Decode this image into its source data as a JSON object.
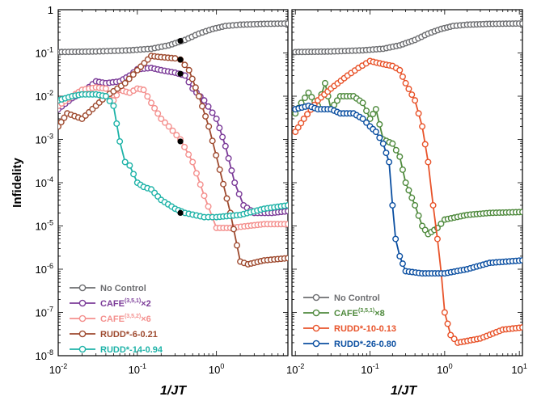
{
  "chart_data": [
    {
      "type": "line",
      "panel": "left",
      "title": "",
      "xlabel": "1/JT",
      "ylabel": "Infidelity",
      "x_scale": "log",
      "y_scale": "log",
      "xlim": [
        0.01,
        8
      ],
      "ylim": [
        1e-08,
        1
      ],
      "x_ticks": [
        {
          "value": 0.01,
          "base": "10",
          "exp": "-2"
        },
        {
          "value": 0.1,
          "base": "10",
          "exp": "-1"
        },
        {
          "value": 1,
          "base": "10",
          "exp": "0"
        }
      ],
      "y_ticks": [
        {
          "value": 1,
          "base": "1",
          "exp": ""
        },
        {
          "value": 0.1,
          "base": "10",
          "exp": "-1"
        },
        {
          "value": 0.01,
          "base": "10",
          "exp": "-2"
        },
        {
          "value": 0.001,
          "base": "10",
          "exp": "-3"
        },
        {
          "value": 0.0001,
          "base": "10",
          "exp": "-4"
        },
        {
          "value": 1e-05,
          "base": "10",
          "exp": "-5"
        },
        {
          "value": 1e-06,
          "base": "10",
          "exp": "-6"
        },
        {
          "value": 1e-07,
          "base": "10",
          "exp": "-7"
        },
        {
          "value": 1e-08,
          "base": "10",
          "exp": "-8"
        }
      ],
      "legend_position": "bottom-left",
      "series": [
        {
          "name": "No Control",
          "label": {
            "main": "No Control",
            "sup": "",
            "suffix": ""
          },
          "color": "#6d6e71",
          "points": [
            [
              0.01,
              0.105
            ],
            [
              0.03,
              0.108
            ],
            [
              0.08,
              0.115
            ],
            [
              0.15,
              0.125
            ],
            [
              0.25,
              0.15
            ],
            [
              0.4,
              0.2
            ],
            [
              0.6,
              0.28
            ],
            [
              0.9,
              0.36
            ],
            [
              1.3,
              0.42
            ],
            [
              2,
              0.45
            ],
            [
              4,
              0.47
            ],
            [
              8,
              0.48
            ]
          ]
        },
        {
          "name": "CAFE(3,5,1)x2",
          "label": {
            "main": "CAFE",
            "sup": "(3,5,1)",
            "suffix": "×2"
          },
          "color": "#7b3b98",
          "points": [
            [
              0.01,
              0.005
            ],
            [
              0.015,
              0.009
            ],
            [
              0.02,
              0.012
            ],
            [
              0.03,
              0.022
            ],
            [
              0.04,
              0.02
            ],
            [
              0.06,
              0.022
            ],
            [
              0.08,
              0.03
            ],
            [
              0.1,
              0.042
            ],
            [
              0.15,
              0.045
            ],
            [
              0.2,
              0.04
            ],
            [
              0.3,
              0.035
            ],
            [
              0.4,
              0.03
            ],
            [
              0.5,
              0.015
            ],
            [
              0.7,
              0.008
            ],
            [
              1,
              0.003
            ],
            [
              1.3,
              0.0007
            ],
            [
              1.7,
              0.0001
            ],
            [
              2.2,
              3e-05
            ],
            [
              3,
              2e-05
            ],
            [
              5,
              2e-05
            ],
            [
              8,
              2.2e-05
            ]
          ]
        },
        {
          "name": "CAFE(3,5,2)x6",
          "label": {
            "main": "CAFE",
            "sup": "(3,5,2)",
            "suffix": "×6"
          },
          "color": "#f4908e",
          "points": [
            [
              0.01,
              0.006
            ],
            [
              0.015,
              0.01
            ],
            [
              0.02,
              0.014
            ],
            [
              0.03,
              0.016
            ],
            [
              0.04,
              0.015
            ],
            [
              0.05,
              0.008
            ],
            [
              0.06,
              0.014
            ],
            [
              0.08,
              0.012
            ],
            [
              0.1,
              0.015
            ],
            [
              0.12,
              0.014
            ],
            [
              0.15,
              0.007
            ],
            [
              0.2,
              0.003
            ],
            [
              0.25,
              0.002
            ],
            [
              0.35,
              0.001
            ],
            [
              0.5,
              0.0003
            ],
            [
              0.7,
              5e-05
            ],
            [
              1,
              9e-06
            ],
            [
              1.5,
              9e-06
            ],
            [
              2.5,
              1e-05
            ],
            [
              4,
              1.1e-05
            ],
            [
              8,
              1.1e-05
            ]
          ]
        },
        {
          "name": "RUDD*-6-0.21",
          "label": {
            "main": "RUDD*-6-0.21",
            "sup": "",
            "suffix": ""
          },
          "color": "#9e4a2f",
          "points": [
            [
              0.01,
              0.002
            ],
            [
              0.013,
              0.004
            ],
            [
              0.02,
              0.003
            ],
            [
              0.03,
              0.006
            ],
            [
              0.04,
              0.01
            ],
            [
              0.05,
              0.013
            ],
            [
              0.07,
              0.02
            ],
            [
              0.1,
              0.04
            ],
            [
              0.15,
              0.085
            ],
            [
              0.2,
              0.08
            ],
            [
              0.3,
              0.075
            ],
            [
              0.35,
              0.07
            ],
            [
              0.45,
              0.04
            ],
            [
              0.6,
              0.01
            ],
            [
              0.8,
              0.002
            ],
            [
              1.1,
              0.0002
            ],
            [
              1.5,
              2e-05
            ],
            [
              2,
              1.5e-06
            ],
            [
              2.5,
              1.3e-06
            ],
            [
              4,
              1.6e-06
            ],
            [
              8,
              1.8e-06
            ]
          ]
        },
        {
          "name": "RUDD*-14-0.94",
          "label": {
            "main": "RUDD*-14-0.94",
            "sup": "",
            "suffix": ""
          },
          "color": "#1fb3a8",
          "points": [
            [
              0.01,
              0.008
            ],
            [
              0.015,
              0.01
            ],
            [
              0.02,
              0.011
            ],
            [
              0.03,
              0.011
            ],
            [
              0.04,
              0.01
            ],
            [
              0.05,
              0.006
            ],
            [
              0.06,
              0.0009
            ],
            [
              0.07,
              0.0003
            ],
            [
              0.08,
              0.00025
            ],
            [
              0.1,
              0.0001
            ],
            [
              0.12,
              8e-05
            ],
            [
              0.15,
              7e-05
            ],
            [
              0.2,
              4e-05
            ],
            [
              0.3,
              2.5e-05
            ],
            [
              0.4,
              2e-05
            ],
            [
              0.7,
              1.6e-05
            ],
            [
              1,
              1.6e-05
            ],
            [
              2,
              1.8e-05
            ],
            [
              4,
              2.5e-05
            ],
            [
              8,
              3e-05
            ]
          ]
        }
      ],
      "markers": [
        [
          0.35,
          0.19
        ],
        [
          0.35,
          0.07
        ],
        [
          0.35,
          0.033
        ],
        [
          0.35,
          0.0009
        ],
        [
          0.35,
          2e-05
        ]
      ]
    },
    {
      "type": "line",
      "panel": "right",
      "title": "",
      "xlabel": "1/JT",
      "ylabel": "",
      "x_scale": "log",
      "y_scale": "log",
      "xlim": [
        0.009,
        11
      ],
      "ylim": [
        1e-08,
        1
      ],
      "x_ticks": [
        {
          "value": 0.01,
          "base": "10",
          "exp": "-2"
        },
        {
          "value": 0.1,
          "base": "10",
          "exp": "-1"
        },
        {
          "value": 1,
          "base": "10",
          "exp": "0"
        },
        {
          "value": 10,
          "base": "10",
          "exp": "1"
        }
      ],
      "legend_position": "bottom-left",
      "series": [
        {
          "name": "No Control",
          "label": {
            "main": "No Control",
            "sup": "",
            "suffix": ""
          },
          "color": "#6d6e71",
          "points": [
            [
              0.01,
              0.105
            ],
            [
              0.03,
              0.108
            ],
            [
              0.08,
              0.115
            ],
            [
              0.15,
              0.125
            ],
            [
              0.25,
              0.15
            ],
            [
              0.4,
              0.2
            ],
            [
              0.6,
              0.28
            ],
            [
              0.9,
              0.36
            ],
            [
              1.3,
              0.42
            ],
            [
              2,
              0.45
            ],
            [
              4,
              0.47
            ],
            [
              11,
              0.48
            ]
          ]
        },
        {
          "name": "CAFE(3,5,1)x8",
          "label": {
            "main": "CAFE",
            "sup": "(3,5,1)",
            "suffix": "×8"
          },
          "color": "#4f8a3d",
          "points": [
            [
              0.01,
              0.004
            ],
            [
              0.012,
              0.007
            ],
            [
              0.015,
              0.012
            ],
            [
              0.02,
              0.006
            ],
            [
              0.025,
              0.02
            ],
            [
              0.03,
              0.005
            ],
            [
              0.04,
              0.01
            ],
            [
              0.06,
              0.01
            ],
            [
              0.08,
              0.007
            ],
            [
              0.1,
              0.003
            ],
            [
              0.12,
              0.005
            ],
            [
              0.15,
              0.001
            ],
            [
              0.2,
              0.0008
            ],
            [
              0.25,
              0.0004
            ],
            [
              0.3,
              0.0001
            ],
            [
              0.4,
              3e-05
            ],
            [
              0.5,
              1e-05
            ],
            [
              0.6,
              6.5e-06
            ],
            [
              0.8,
              9e-06
            ],
            [
              1,
              1.4e-05
            ],
            [
              2,
              1.8e-05
            ],
            [
              4,
              2e-05
            ],
            [
              11,
              2.1e-05
            ]
          ]
        },
        {
          "name": "RUDD*-10-0.13",
          "label": {
            "main": "RUDD*-10-0.13",
            "sup": "",
            "suffix": ""
          },
          "color": "#e8532a",
          "points": [
            [
              0.01,
              0.0015
            ],
            [
              0.013,
              0.003
            ],
            [
              0.02,
              0.008
            ],
            [
              0.03,
              0.015
            ],
            [
              0.05,
              0.03
            ],
            [
              0.07,
              0.045
            ],
            [
              0.1,
              0.065
            ],
            [
              0.15,
              0.055
            ],
            [
              0.2,
              0.05
            ],
            [
              0.25,
              0.04
            ],
            [
              0.3,
              0.02
            ],
            [
              0.4,
              0.008
            ],
            [
              0.5,
              0.002
            ],
            [
              0.6,
              0.0003
            ],
            [
              0.7,
              3e-05
            ],
            [
              0.8,
              5e-06
            ],
            [
              0.9,
              8e-07
            ],
            [
              1,
              1e-07
            ],
            [
              1.2,
              3e-08
            ],
            [
              1.5,
              2e-08
            ],
            [
              3,
              2.5e-08
            ],
            [
              6,
              4e-08
            ],
            [
              11,
              4.5e-08
            ]
          ]
        },
        {
          "name": "RUDD*-26-0.80",
          "label": {
            "main": "RUDD*-26-0.80",
            "sup": "",
            "suffix": ""
          },
          "color": "#0b4fa1",
          "points": [
            [
              0.01,
              0.005
            ],
            [
              0.015,
              0.006
            ],
            [
              0.02,
              0.005
            ],
            [
              0.03,
              0.005
            ],
            [
              0.04,
              0.004
            ],
            [
              0.06,
              0.004
            ],
            [
              0.08,
              0.003
            ],
            [
              0.1,
              0.002
            ],
            [
              0.12,
              0.0015
            ],
            [
              0.15,
              0.0008
            ],
            [
              0.18,
              0.0003
            ],
            [
              0.2,
              3e-05
            ],
            [
              0.22,
              5e-06
            ],
            [
              0.25,
              2e-06
            ],
            [
              0.3,
              9e-07
            ],
            [
              0.5,
              8e-07
            ],
            [
              1,
              8e-07
            ],
            [
              2,
              1e-06
            ],
            [
              4,
              1.4e-06
            ],
            [
              11,
              1.6e-06
            ]
          ]
        }
      ],
      "markers": []
    }
  ]
}
